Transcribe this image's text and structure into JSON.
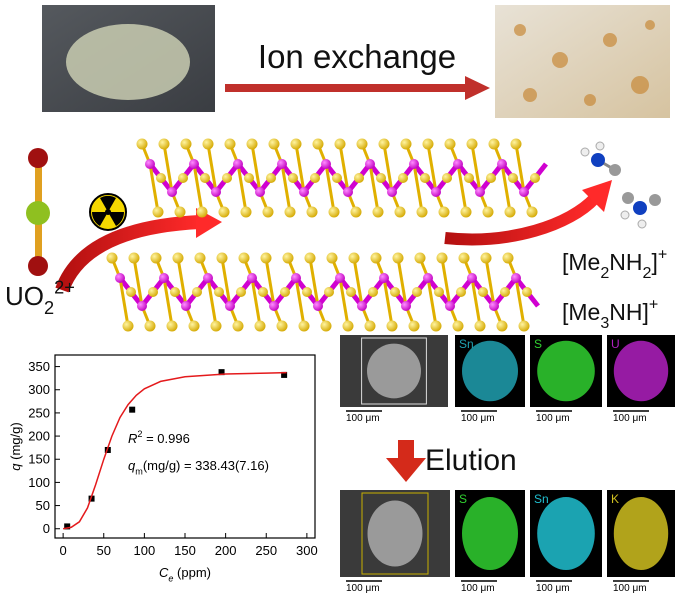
{
  "header": {
    "process": "Ion exchange"
  },
  "ions": {
    "uranyl": [
      {
        "normal": "UO"
      },
      {
        "sub": "2"
      },
      {
        "sup": "2+"
      }
    ],
    "cation1": [
      {
        "normal": "[Me"
      },
      {
        "sub": "2"
      },
      {
        "normal": "NH"
      },
      {
        "sub": "2"
      },
      {
        "normal": "]"
      },
      {
        "sup": "+"
      }
    ],
    "cation2": [
      {
        "normal": "[Me"
      },
      {
        "sub": "3"
      },
      {
        "normal": "NH]"
      },
      {
        "sup": "+"
      }
    ]
  },
  "chart_data": {
    "type": "scatter",
    "x_label": [
      {
        "italic": "C"
      },
      {
        "italic_sub": "e"
      },
      {
        "normal": " (ppm)"
      }
    ],
    "y_label": [
      {
        "italic": "q"
      },
      {
        "normal": " (mg/g)"
      }
    ],
    "annotations": [
      [
        {
          "italic": "R"
        },
        {
          "sup": "2"
        },
        {
          "normal": " = 0.996"
        }
      ],
      [
        {
          "italic": "q"
        },
        {
          "sub": "m"
        },
        {
          "normal": "(mg/g) = 338.43(7.16)"
        }
      ]
    ],
    "series": [
      {
        "type": "scatter",
        "color": "#000000",
        "x": [
          5,
          35,
          55,
          85,
          195,
          272
        ],
        "values": [
          5,
          65,
          170,
          257,
          338,
          332
        ]
      },
      {
        "type": "line",
        "color": "#e41a1c",
        "x": [
          0,
          10,
          20,
          30,
          40,
          50,
          60,
          70,
          80,
          90,
          100,
          120,
          150,
          200,
          250,
          275
        ],
        "values": [
          0,
          3,
          15,
          45,
          95,
          150,
          200,
          240,
          268,
          288,
          302,
          318,
          328,
          334,
          336,
          337
        ]
      }
    ],
    "xlim": [
      -10,
      310
    ],
    "ylim": [
      -20,
      375
    ],
    "xticks": [
      0,
      50,
      100,
      150,
      200,
      250,
      300
    ],
    "yticks": [
      0,
      50,
      100,
      150,
      200,
      250,
      300,
      350
    ]
  },
  "mapping_before": {
    "elements": [
      "Sn",
      "S",
      "U"
    ],
    "scale_bars": [
      "100 μm",
      "100 μm",
      "100 μm",
      "100 μm"
    ]
  },
  "elution": "Elution",
  "mapping_after": {
    "elements": [
      "S",
      "Sn",
      "K"
    ],
    "scale_bars": [
      "100 μm",
      "100 μm",
      "100 μm",
      "100 μm"
    ]
  }
}
